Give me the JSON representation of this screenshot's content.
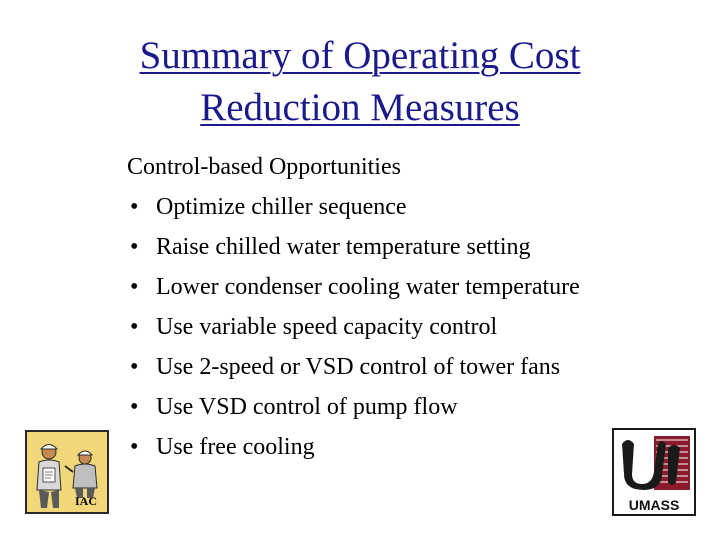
{
  "slide": {
    "title_lines": [
      "Summary of Operating Cost",
      "Reduction Measures"
    ],
    "heading": "Control-based Opportunities",
    "bullet_char": "•",
    "bullets": [
      "Optimize chiller sequence",
      "Raise chilled water temperature setting",
      "Lower condenser cooling water temperature",
      "Use variable speed capacity control",
      "Use 2-speed or VSD control of tower fans",
      "Use VSD control of pump flow",
      "Use free cooling"
    ]
  },
  "logos": {
    "left": {
      "text": "IAC"
    },
    "right": {
      "text": "UMASS"
    }
  },
  "colors": {
    "title": "#1a1a8c",
    "body_text": "#000000",
    "iac_background": "#f1d77a",
    "umass_maroon": "#8b1a2b"
  }
}
